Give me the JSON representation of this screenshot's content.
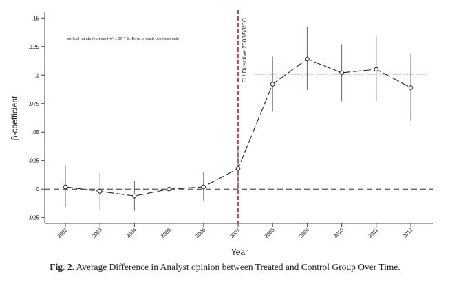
{
  "chart_data": {
    "type": "line",
    "x_label": "Year",
    "y_label": "β-coefficient",
    "annotation_note": "Vertical bands represent +/- 1.96 * St. Error of each point estimate",
    "event_label": "EU Directive 2003/58/EC",
    "event_year": 2007,
    "ylim": [
      -0.03,
      0.155
    ],
    "y_ticks": [
      -0.025,
      0,
      0.025,
      0.05,
      0.075,
      0.1,
      0.125,
      0.15
    ],
    "y_tick_labels": [
      "-.025",
      "0",
      ".025",
      ".05",
      ".075",
      ".1",
      ".125",
      ".15"
    ],
    "x": [
      2002,
      2003,
      2004,
      2005,
      2006,
      2007,
      2008,
      2009,
      2010,
      2011,
      2012
    ],
    "x_tick_labels": [
      "2002",
      "2003",
      "2004",
      "2005",
      "2006",
      "2007",
      "2008",
      "2009",
      "2010",
      "2011",
      "2012"
    ],
    "estimate": [
      0.002,
      -0.002,
      -0.006,
      0.0,
      0.002,
      0.018,
      0.092,
      0.114,
      0.102,
      0.105,
      0.089
    ],
    "ci_low": [
      -0.016,
      -0.018,
      -0.019,
      null,
      -0.01,
      0.0,
      0.068,
      0.087,
      0.077,
      0.077,
      0.06
    ],
    "ci_high": [
      0.021,
      0.014,
      0.007,
      null,
      0.015,
      0.035,
      0.116,
      0.142,
      0.127,
      0.134,
      0.119
    ],
    "post_mean": {
      "value": 0.101,
      "from_year": 2007.5,
      "to_year": 2012.5
    },
    "zero_line": 0,
    "colors": {
      "line": "#222222",
      "event": "#b22028",
      "post_mean": "#d63333",
      "zero": "#555555"
    }
  },
  "caption": {
    "label": "Fig. 2.",
    "text": "Average Difference in Analyst opinion between Treated and Control Group Over Time."
  }
}
